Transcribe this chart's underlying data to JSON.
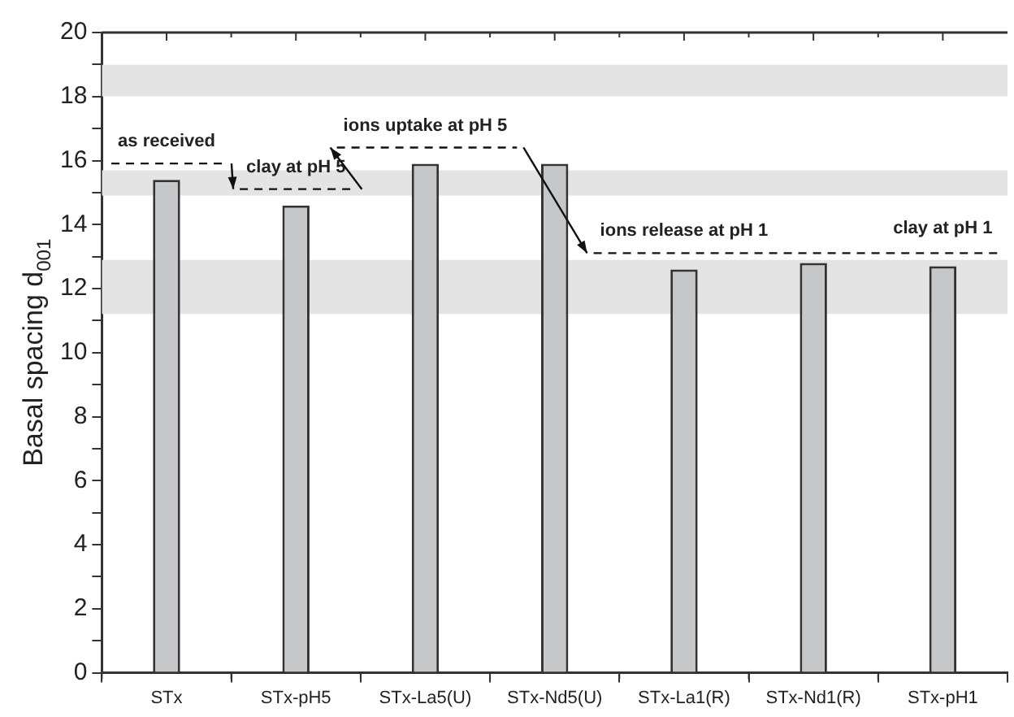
{
  "chart_data": {
    "type": "bar",
    "ylabel": "Basal spacing d$_{001}$",
    "categories": [
      "STx",
      "STx-pH5",
      "STx-La5(U)",
      "STx-Nd5(U)",
      "STx-La1(R)",
      "STx-Nd1(R)",
      "STx-pH1"
    ],
    "values": [
      15.4,
      14.6,
      15.9,
      15.9,
      12.6,
      12.8,
      12.7
    ],
    "color": "#c6c7c9",
    "ylim": [
      0,
      20
    ],
    "yticks": [
      0,
      {
        "value": 1,
        "label": null
      },
      2,
      {
        "value": 3,
        "label": null
      },
      4,
      {
        "value": 5,
        "label": null
      },
      6,
      {
        "value": 7,
        "label": null
      },
      8,
      {
        "value": 9,
        "label": null
      },
      10,
      {
        "value": 11,
        "label": null
      },
      12,
      {
        "value": 13,
        "label": null
      },
      14,
      {
        "value": 15,
        "label": null
      },
      16,
      {
        "value": 17,
        "label": null
      },
      18,
      {
        "value": 19,
        "label": null
      },
      20
    ],
    "grid": false,
    "legend": false,
    "bands": [
      {
        "axis": "y",
        "from": 18,
        "to": 19,
        "color": "#e4e4e4"
      },
      {
        "axis": "y",
        "from": 14.9,
        "to": 15.7,
        "color": "#e4e4e4"
      },
      {
        "axis": "y",
        "from": 11.2,
        "to": 12.9,
        "color": "#e4e4e4"
      }
    ],
    "annotations": [
      {
        "text": "as received",
        "x": "STx",
        "y": 15.4
      },
      {
        "text": "clay at pH 5",
        "x": "STx-pH5",
        "y": 14.6
      },
      {
        "text": "ions uptake at pH 5",
        "x": "STx-La5(U)",
        "y": 15.9
      },
      {
        "text": "ions release at pH 1",
        "x": "STx-La1(R)",
        "y": 12.6
      },
      {
        "text": "clay at pH 1",
        "x": "STx-pH1",
        "y": 12.7
      }
    ]
  }
}
